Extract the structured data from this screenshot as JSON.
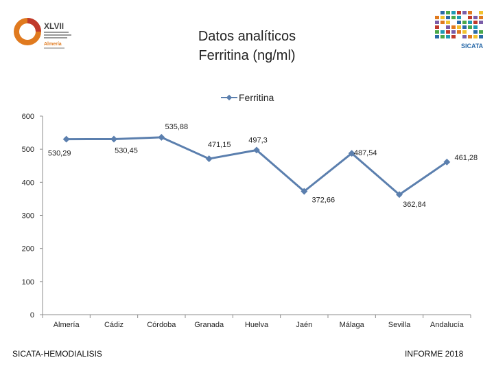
{
  "header": {
    "title_line1": "Datos analíticos",
    "title_line2": "Ferritina (ng/ml)",
    "logo_left": {
      "roman": "XLVII",
      "city": "Almería"
    },
    "logo_right": {
      "brand": "SICATA"
    }
  },
  "footer": {
    "left": "SICATA-HEMODIALISIS",
    "right": "INFORME 2018"
  },
  "colors": {
    "series": "#5b7fae",
    "axis": "#8c8c8c",
    "logo_orange": "#e07a1f",
    "logo_red": "#c0392b"
  },
  "chart_data": {
    "type": "line",
    "title": "Datos analíticos Ferritina (ng/ml)",
    "xlabel": "",
    "ylabel": "",
    "legend_position": "top-center",
    "grid": false,
    "ylim": [
      0,
      600
    ],
    "yticks": [
      0,
      100,
      200,
      300,
      400,
      500,
      600
    ],
    "ytick_labels": [
      "0",
      "100",
      "200",
      "300",
      "400",
      "500",
      "600"
    ],
    "categories": [
      "Almería",
      "Cádiz",
      "Córdoba",
      "Granada",
      "Huelva",
      "Jaén",
      "Málaga",
      "Sevilla",
      "Andalucía"
    ],
    "series": [
      {
        "name": "Ferritina",
        "values": [
          530.29,
          530.45,
          535.88,
          471.15,
          497.3,
          372.66,
          487.54,
          362.84,
          461.28
        ],
        "labels": [
          "530,29",
          "530,45",
          "535,88",
          "471,15",
          "497,3",
          "372,66",
          "487,54",
          "362,84",
          "461,28"
        ]
      }
    ]
  }
}
